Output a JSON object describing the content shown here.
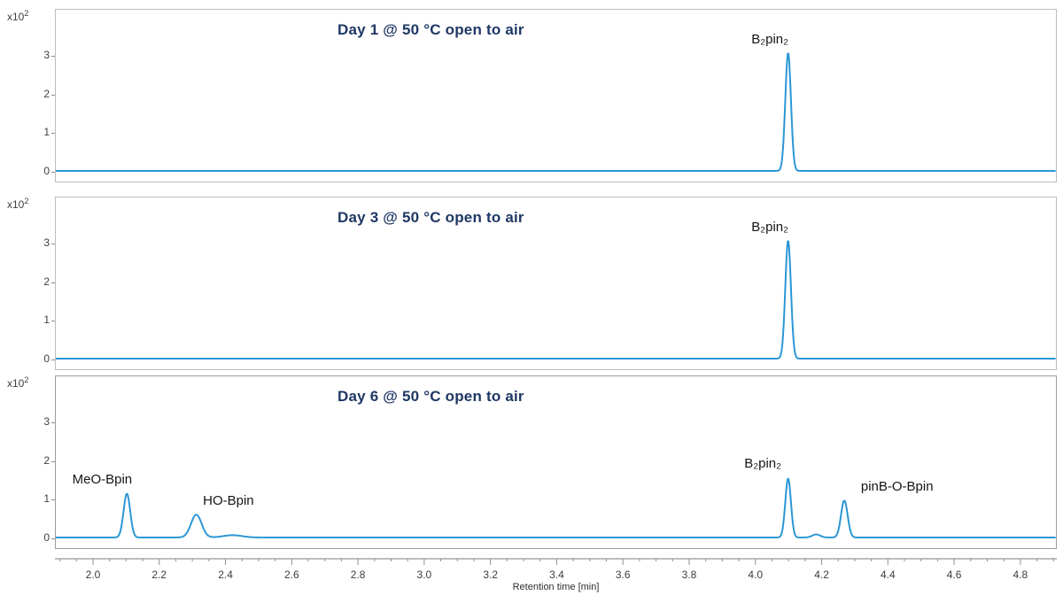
{
  "colors": {
    "trace": "#2b97d5",
    "title": "#1f3864",
    "axis_text": "#404040",
    "box_border": "#bdbdbd",
    "tick": "#8f8f8f",
    "axis_line": "#a8a8a8"
  },
  "x_axis": {
    "title": "Retention time [min]",
    "range": [
      1.885,
      4.91
    ],
    "tick_values": [
      2.0,
      2.2,
      2.4,
      2.6,
      2.8,
      3.0,
      3.2,
      3.4,
      3.6,
      3.8,
      4.0,
      4.2,
      4.4,
      4.6,
      4.8
    ],
    "minor_step": 0.05
  },
  "y_axis": {
    "exp_prefix": "x10",
    "exp_power": "2",
    "tick_values": [
      0,
      1,
      2,
      3
    ],
    "range_top": 4.23,
    "range_bottom": -0.28
  },
  "chart_data": [
    {
      "type": "line",
      "title": "Day 1 @ 50 °C open to air",
      "xlabel": "Retention time [min]",
      "ylabel": "x10^2",
      "xlim": [
        1.885,
        4.91
      ],
      "ylim": [
        -0.28,
        4.23
      ],
      "peaks": [
        {
          "label": "B₂pin₂",
          "rt": 4.1,
          "height": 3.1,
          "sigma": 0.0085,
          "label_dx": -22,
          "label_dy": 0
        }
      ]
    },
    {
      "type": "line",
      "title": "Day 3 @ 50 °C open to air",
      "xlabel": "Retention time [min]",
      "ylabel": "x10^2",
      "xlim": [
        1.885,
        4.91
      ],
      "ylim": [
        -0.28,
        4.23
      ],
      "peaks": [
        {
          "label": "B₂pin₂",
          "rt": 4.1,
          "height": 3.1,
          "sigma": 0.0085,
          "label_dx": -22,
          "label_dy": 0
        }
      ]
    },
    {
      "type": "line",
      "title": "Day 6 @ 50 °C open to air",
      "xlabel": "Retention time [min]",
      "ylabel": "x10^2",
      "xlim": [
        1.885,
        4.91
      ],
      "ylim": [
        -0.28,
        4.23
      ],
      "peaks": [
        {
          "label": "MeO-Bpin",
          "rt": 2.1,
          "height": 1.15,
          "sigma": 0.01,
          "label_dx": -28,
          "label_dy": -2
        },
        {
          "label": "HO-Bpin",
          "rt": 2.31,
          "height": 0.6,
          "sigma": 0.016,
          "label_dx": 36,
          "label_dy": -2
        },
        {
          "label": "",
          "rt": 2.42,
          "height": 0.06,
          "sigma": 0.028
        },
        {
          "label": "B₂pin₂",
          "rt": 4.1,
          "height": 1.55,
          "sigma": 0.0085,
          "label_dx": -30,
          "label_dy": -2
        },
        {
          "label": "",
          "rt": 4.185,
          "height": 0.08,
          "sigma": 0.012
        },
        {
          "label": "pinB-O-Bpin",
          "rt": 4.27,
          "height": 0.97,
          "sigma": 0.01,
          "label_dx": 58,
          "label_dy": -2
        }
      ]
    }
  ]
}
